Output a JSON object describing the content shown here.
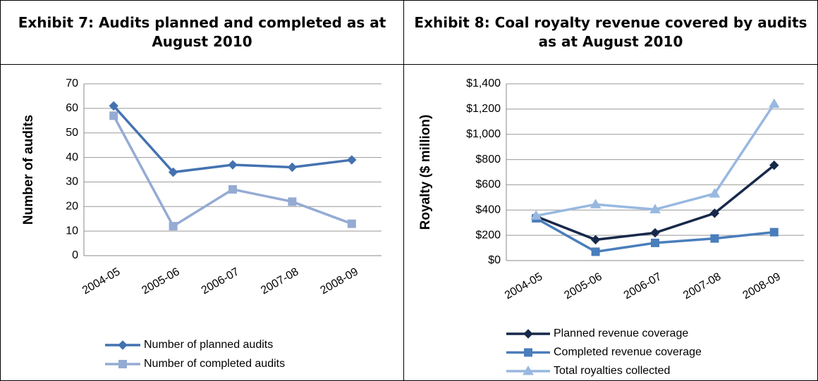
{
  "chart_data": [
    {
      "type": "line",
      "title": "Exhibit 7: Audits planned and completed as at August 2010",
      "ylabel": "Number of audits",
      "categories": [
        "2004-05",
        "2005-06",
        "2006-07",
        "2007-08",
        "2008-09"
      ],
      "series": [
        {
          "name": "Number of planned audits",
          "color": "#4472b0",
          "marker": "diamond",
          "values": [
            61,
            34,
            37,
            36,
            39
          ]
        },
        {
          "name": "Number of completed audits",
          "color": "#95abd3",
          "marker": "square",
          "values": [
            57,
            12,
            27,
            22,
            13
          ]
        }
      ],
      "ylim": [
        0,
        70
      ],
      "yticks": [
        0,
        10,
        20,
        30,
        40,
        50,
        60,
        70
      ],
      "grid": true,
      "legend": "bottom"
    },
    {
      "type": "line",
      "title": "Exhibit 8: Coal royalty revenue covered by audits as at August 2010",
      "ylabel": "Royalty ($ million)",
      "categories": [
        "2004-05",
        "2005-06",
        "2006-07",
        "2007-08",
        "2008-09"
      ],
      "series": [
        {
          "name": "Planned revenue coverage",
          "color": "#17294a",
          "marker": "diamond",
          "values": [
            350,
            165,
            220,
            375,
            755
          ]
        },
        {
          "name": "Completed revenue coverage",
          "color": "#4a7ebb",
          "marker": "square",
          "values": [
            335,
            70,
            140,
            175,
            225
          ]
        },
        {
          "name": "Total royalties collected",
          "color": "#98b8e0",
          "marker": "triangle",
          "values": [
            355,
            445,
            405,
            530,
            1240
          ]
        }
      ],
      "ylim": [
        0,
        1400
      ],
      "yticks": [
        {
          "value": 0,
          "label": "$0"
        },
        {
          "value": 200,
          "label": "$200"
        },
        {
          "value": 400,
          "label": "$400"
        },
        {
          "value": 600,
          "label": "$600"
        },
        {
          "value": 800,
          "label": "$800"
        },
        {
          "value": 1000,
          "label": "$1,000"
        },
        {
          "value": 1200,
          "label": "$1,200"
        },
        {
          "value": 1400,
          "label": "$1,400"
        }
      ],
      "grid": true,
      "legend": "bottom"
    }
  ]
}
